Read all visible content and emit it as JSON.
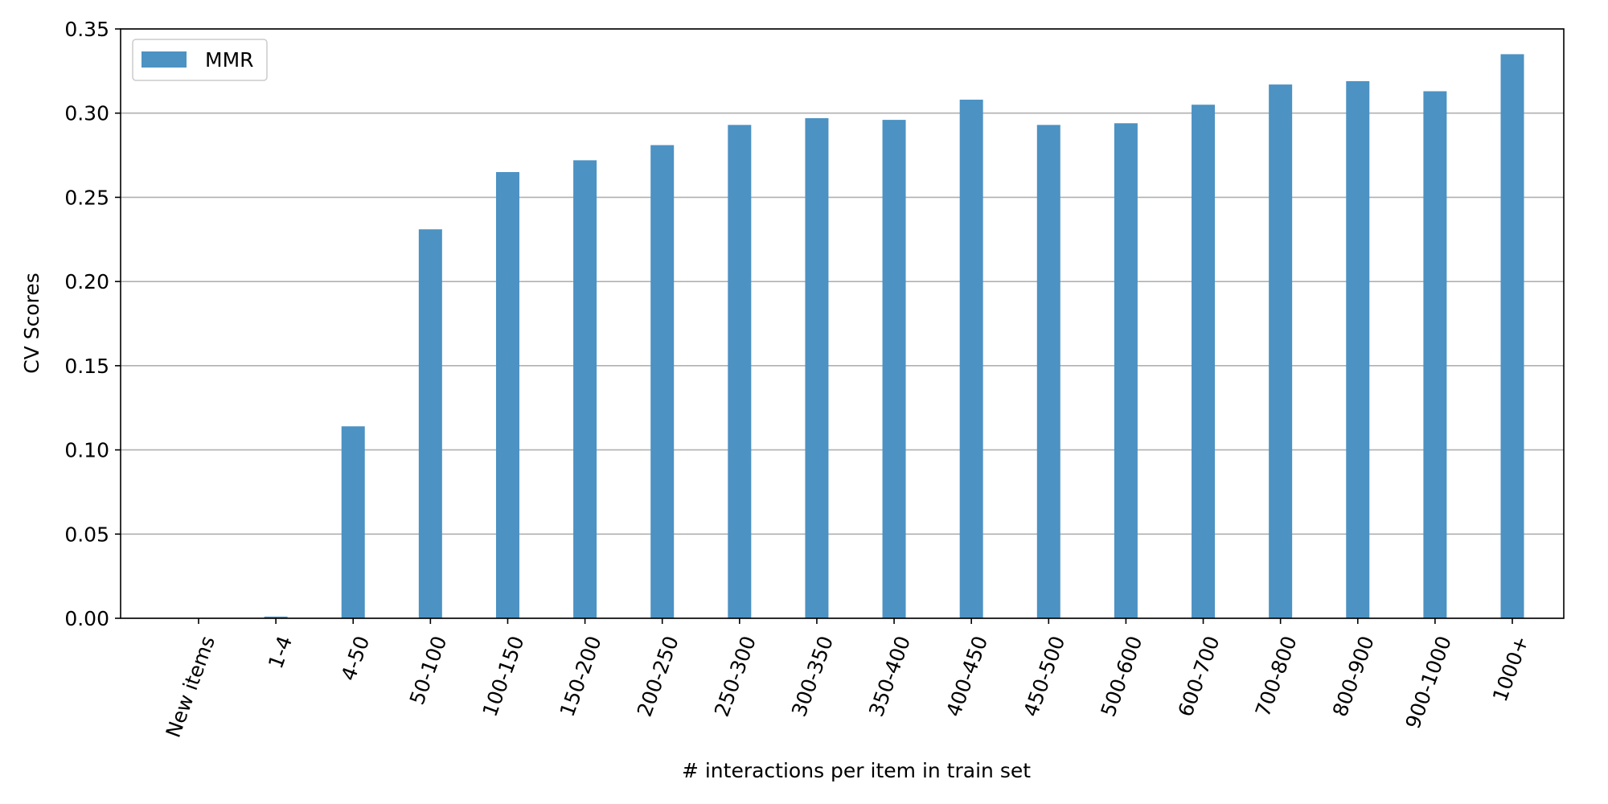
{
  "chart_data": {
    "type": "bar",
    "title": "",
    "xlabel": "# interactions per item in train set",
    "ylabel": "CV Scores",
    "categories": [
      "New items",
      "1-4",
      "4-50",
      "50-100",
      "100-150",
      "150-200",
      "200-250",
      "250-300",
      "300-350",
      "350-400",
      "400-450",
      "450-500",
      "500-600",
      "600-700",
      "700-800",
      "800-900",
      "900-1000",
      "1000+"
    ],
    "series": [
      {
        "name": "MMR",
        "color": "#4c92c3",
        "values": [
          0.0,
          0.001,
          0.114,
          0.231,
          0.265,
          0.272,
          0.281,
          0.293,
          0.297,
          0.296,
          0.308,
          0.293,
          0.294,
          0.305,
          0.317,
          0.319,
          0.313,
          0.335
        ]
      }
    ],
    "ylim": [
      0,
      0.35
    ],
    "yticks": [
      0.0,
      0.05,
      0.1,
      0.15,
      0.2,
      0.25,
      0.3,
      0.35
    ],
    "ytick_labels": [
      "0.00",
      "0.05",
      "0.10",
      "0.15",
      "0.20",
      "0.25",
      "0.30",
      "0.35"
    ],
    "grid": "horizontal",
    "legend_position": "top-left",
    "xtick_rotation_deg": -70
  }
}
